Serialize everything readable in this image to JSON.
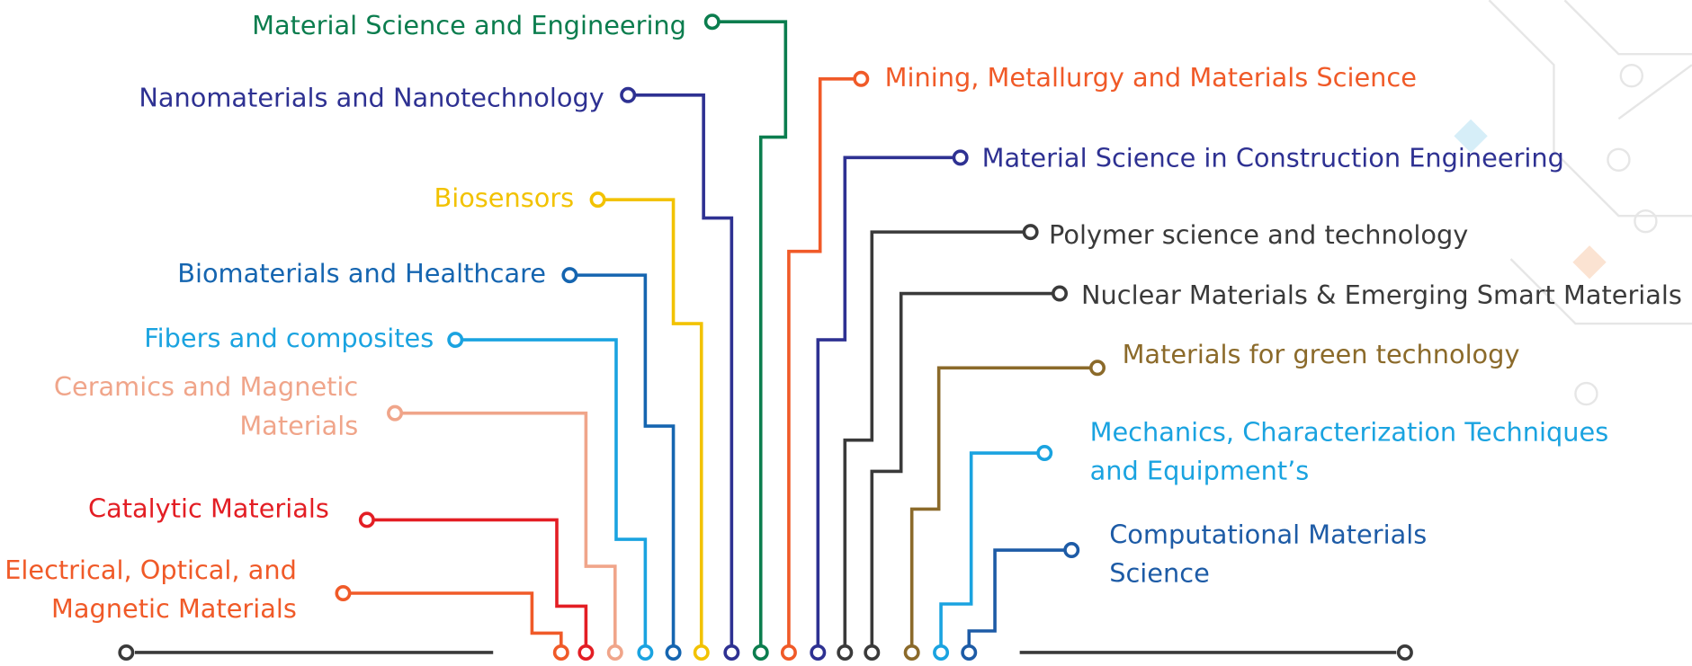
{
  "topics": [
    {
      "lines": [
        "Material Science and Engineering"
      ],
      "color": "#0b7d4e"
    },
    {
      "lines": [
        "Nanomaterials and Nanotechnology"
      ],
      "color": "#2e3192"
    },
    {
      "lines": [
        "Biosensors"
      ],
      "color": "#f2c200"
    },
    {
      "lines": [
        "Biomaterials and Healthcare"
      ],
      "color": "#1565b0"
    },
    {
      "lines": [
        "Fibers and composites"
      ],
      "color": "#1aa3e0"
    },
    {
      "lines": [
        "Ceramics and Magnetic",
        "Materials"
      ],
      "color": "#f0a58a"
    },
    {
      "lines": [
        "Catalytic Materials"
      ],
      "color": "#e31e24"
    },
    {
      "lines": [
        "Electrical, Optical, and",
        "Magnetic Materials"
      ],
      "color": "#f05a28"
    },
    {
      "lines": [
        "Mining, Metallurgy and Materials Science"
      ],
      "color": "#f05a28"
    },
    {
      "lines": [
        "Material Science in Construction Engineering"
      ],
      "color": "#2e3192"
    },
    {
      "lines": [
        "Polymer science and technology"
      ],
      "color": "#3a3a3a"
    },
    {
      "lines": [
        "Nuclear Materials & Emerging Smart Materials"
      ],
      "color": "#3a3a3a"
    },
    {
      "lines": [
        "Materials for green technology"
      ],
      "color": "#8b6a2a"
    },
    {
      "lines": [
        "Mechanics, Characterization Techniques",
        "and Equipment’s"
      ],
      "color": "#1aa3e0"
    },
    {
      "lines": [
        "Computational Materials",
        "Science"
      ],
      "color": "#1d5ba6"
    }
  ]
}
